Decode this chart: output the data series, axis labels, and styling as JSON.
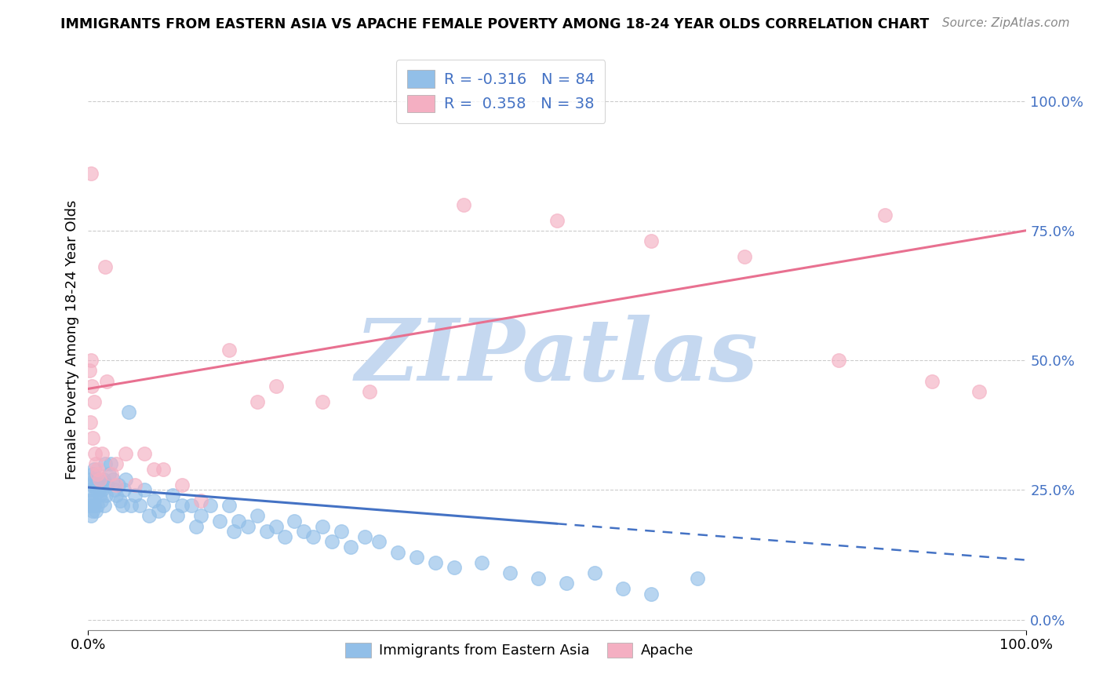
{
  "title": "IMMIGRANTS FROM EASTERN ASIA VS APACHE FEMALE POVERTY AMONG 18-24 YEAR OLDS CORRELATION CHART",
  "source": "Source: ZipAtlas.com",
  "ylabel": "Female Poverty Among 18-24 Year Olds",
  "xlim": [
    0.0,
    1.0
  ],
  "ylim": [
    -0.02,
    1.1
  ],
  "right_yticks": [
    0.0,
    0.25,
    0.5,
    0.75,
    1.0
  ],
  "right_ytick_labels": [
    "0.0%",
    "25.0%",
    "50.0%",
    "75.0%",
    "100.0%"
  ],
  "bottom_xtick_labels": [
    "0.0%",
    "100.0%"
  ],
  "legend_R1": "-0.316",
  "legend_N1": "84",
  "legend_R2": "0.358",
  "legend_N2": "38",
  "blue_color": "#92bfe8",
  "pink_color": "#f4afc2",
  "blue_line_color": "#4472c4",
  "pink_line_color": "#e87090",
  "label_color": "#4472c4",
  "watermark_text": "ZIPatlas",
  "watermark_color": "#c5d8f0",
  "blue_scatter_x": [
    0.001,
    0.002,
    0.002,
    0.003,
    0.003,
    0.004,
    0.004,
    0.005,
    0.005,
    0.006,
    0.006,
    0.007,
    0.007,
    0.008,
    0.008,
    0.009,
    0.01,
    0.01,
    0.011,
    0.012,
    0.013,
    0.014,
    0.015,
    0.016,
    0.017,
    0.018,
    0.019,
    0.02,
    0.022,
    0.024,
    0.026,
    0.028,
    0.03,
    0.032,
    0.034,
    0.036,
    0.038,
    0.04,
    0.043,
    0.046,
    0.05,
    0.055,
    0.06,
    0.065,
    0.07,
    0.075,
    0.08,
    0.09,
    0.095,
    0.1,
    0.11,
    0.115,
    0.12,
    0.13,
    0.14,
    0.15,
    0.155,
    0.16,
    0.17,
    0.18,
    0.19,
    0.2,
    0.21,
    0.22,
    0.23,
    0.24,
    0.25,
    0.26,
    0.27,
    0.28,
    0.295,
    0.31,
    0.33,
    0.35,
    0.37,
    0.39,
    0.42,
    0.45,
    0.48,
    0.51,
    0.54,
    0.57,
    0.6,
    0.65
  ],
  "blue_scatter_y": [
    0.23,
    0.25,
    0.22,
    0.27,
    0.2,
    0.26,
    0.23,
    0.28,
    0.21,
    0.29,
    0.22,
    0.27,
    0.24,
    0.26,
    0.21,
    0.25,
    0.27,
    0.22,
    0.25,
    0.24,
    0.26,
    0.23,
    0.25,
    0.27,
    0.22,
    0.3,
    0.24,
    0.26,
    0.28,
    0.3,
    0.27,
    0.25,
    0.24,
    0.26,
    0.23,
    0.22,
    0.25,
    0.27,
    0.4,
    0.22,
    0.24,
    0.22,
    0.25,
    0.2,
    0.23,
    0.21,
    0.22,
    0.24,
    0.2,
    0.22,
    0.22,
    0.18,
    0.2,
    0.22,
    0.19,
    0.22,
    0.17,
    0.19,
    0.18,
    0.2,
    0.17,
    0.18,
    0.16,
    0.19,
    0.17,
    0.16,
    0.18,
    0.15,
    0.17,
    0.14,
    0.16,
    0.15,
    0.13,
    0.12,
    0.11,
    0.1,
    0.11,
    0.09,
    0.08,
    0.07,
    0.09,
    0.06,
    0.05,
    0.08
  ],
  "pink_scatter_x": [
    0.001,
    0.002,
    0.003,
    0.004,
    0.005,
    0.006,
    0.007,
    0.008,
    0.01,
    0.012,
    0.015,
    0.018,
    0.02,
    0.025,
    0.03,
    0.04,
    0.05,
    0.06,
    0.07,
    0.08,
    0.1,
    0.12,
    0.15,
    0.18,
    0.2,
    0.25,
    0.3,
    0.4,
    0.5,
    0.6,
    0.7,
    0.8,
    0.85,
    0.9,
    0.95,
    0.003,
    0.01,
    0.03
  ],
  "pink_scatter_y": [
    0.48,
    0.38,
    0.5,
    0.45,
    0.35,
    0.42,
    0.32,
    0.3,
    0.28,
    0.27,
    0.32,
    0.68,
    0.46,
    0.28,
    0.26,
    0.32,
    0.26,
    0.32,
    0.29,
    0.29,
    0.26,
    0.23,
    0.52,
    0.42,
    0.45,
    0.42,
    0.44,
    0.8,
    0.77,
    0.73,
    0.7,
    0.5,
    0.78,
    0.46,
    0.44,
    0.86,
    0.29,
    0.3
  ],
  "blue_trend_x_start": 0.0,
  "blue_trend_x_solid_end": 0.5,
  "blue_trend_x_end": 1.0,
  "blue_trend_y_start": 0.255,
  "blue_trend_y_solid_end": 0.185,
  "blue_trend_y_end": 0.115,
  "pink_trend_x_start": 0.0,
  "pink_trend_x_end": 1.0,
  "pink_trend_y_start": 0.445,
  "pink_trend_y_end": 0.75
}
